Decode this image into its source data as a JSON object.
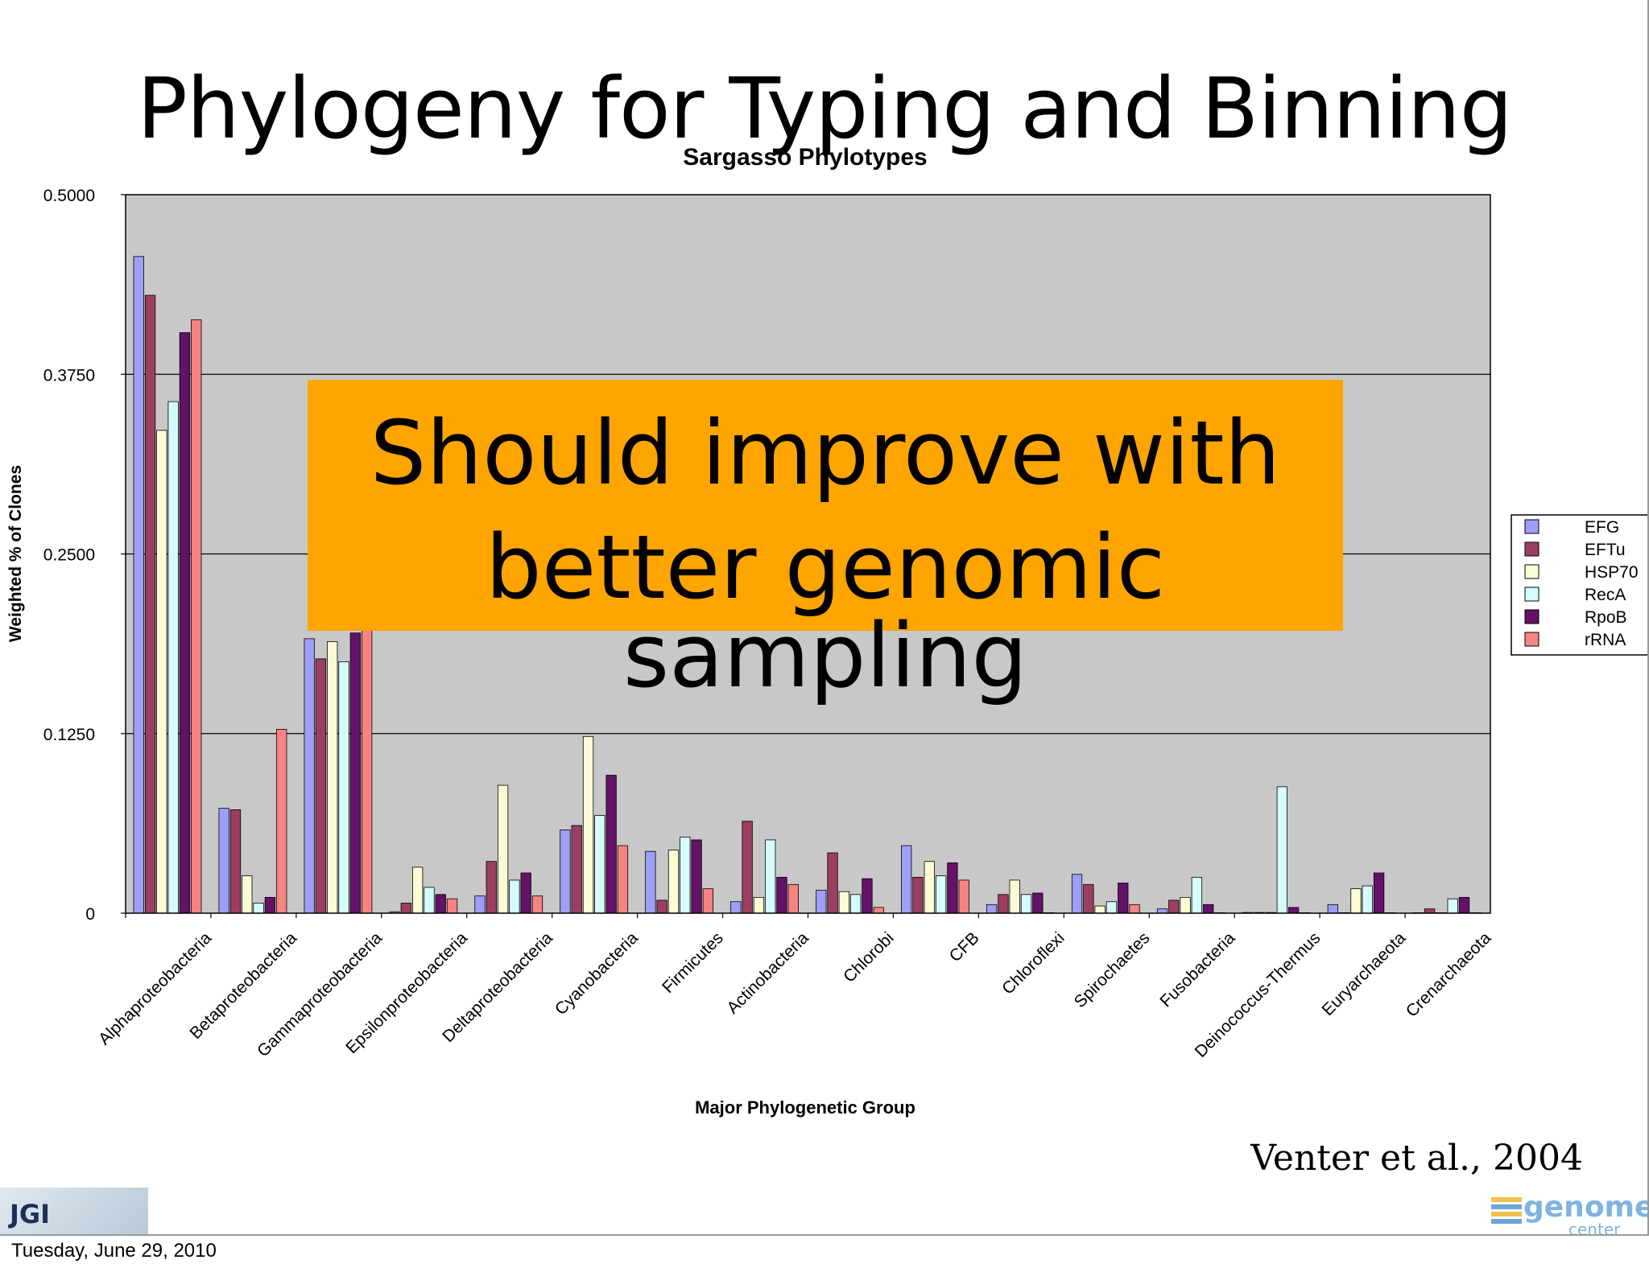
{
  "slide": {
    "title": "Phylogeny for Typing and Binning",
    "callout_line1": "Should improve with",
    "callout_line2": "better genomic sampling",
    "citation": "Venter et al., 2004",
    "date": "Tuesday, June 29, 2010",
    "logo_left": "JGI",
    "logo_right": "genome",
    "logo_right_sub": "center"
  },
  "colors": {
    "plot_background": "#c9c8c9",
    "callout_background": "#ffa500",
    "EFG": "#9d9ef6",
    "EFTu": "#9b3f62",
    "HSP70": "#fcfcd4",
    "RecA": "#d4fcfc",
    "RpoB": "#641168",
    "rRNA": "#f78380"
  },
  "chart_data": {
    "type": "bar",
    "title": "Sargasso Phylotypes",
    "xlabel": "Major Phylogenetic Group",
    "ylabel": "Weighted % of Clones",
    "ylim": [
      0,
      0.5
    ],
    "yticks": [
      "0",
      "0.1250",
      "0.2500",
      "0.3750",
      "0.5000"
    ],
    "grid": true,
    "legend_position": "right",
    "categories": [
      "Alphaproteobacteria",
      "Betaproteobacteria",
      "Gammaproteobacteria",
      "Epsilonproteobacteria",
      "Deltaproteobacteria",
      "Cyanobacteria",
      "Firmicutes",
      "Actinobacteria",
      "Chlorobi",
      "CFB",
      "Chloroflexi",
      "Spirochaetes",
      "Fusobacteria",
      "Deinococcus-Thermus",
      "Euryarchaeota",
      "Crenarchaeota"
    ],
    "series": [
      {
        "name": "EFG",
        "values": [
          0.457,
          0.073,
          0.191,
          0.001,
          0.012,
          0.058,
          0.043,
          0.008,
          0.016,
          0.047,
          0.006,
          0.027,
          0.003,
          0.0005,
          0.006,
          0.0
        ]
      },
      {
        "name": "EFTu",
        "values": [
          0.43,
          0.072,
          0.177,
          0.007,
          0.036,
          0.061,
          0.009,
          0.064,
          0.042,
          0.025,
          0.013,
          0.02,
          0.009,
          0.0005,
          0.0,
          0.003
        ]
      },
      {
        "name": "HSP70",
        "values": [
          0.336,
          0.026,
          0.189,
          0.032,
          0.089,
          0.123,
          0.044,
          0.011,
          0.015,
          0.036,
          0.023,
          0.005,
          0.011,
          0.0005,
          0.017,
          0.0
        ]
      },
      {
        "name": "RecA",
        "values": [
          0.356,
          0.007,
          0.175,
          0.018,
          0.023,
          0.068,
          0.053,
          0.051,
          0.013,
          0.026,
          0.013,
          0.008,
          0.025,
          0.088,
          0.019,
          0.01
        ]
      },
      {
        "name": "RpoB",
        "values": [
          0.404,
          0.011,
          0.195,
          0.013,
          0.028,
          0.096,
          0.051,
          0.025,
          0.024,
          0.035,
          0.014,
          0.021,
          0.006,
          0.004,
          0.028,
          0.011
        ]
      },
      {
        "name": "rRNA",
        "values": [
          0.413,
          0.128,
          0.21,
          0.01,
          0.012,
          0.047,
          0.017,
          0.02,
          0.004,
          0.023,
          0.0,
          0.006,
          0.0,
          0.0,
          0.0,
          0.0
        ]
      }
    ]
  }
}
